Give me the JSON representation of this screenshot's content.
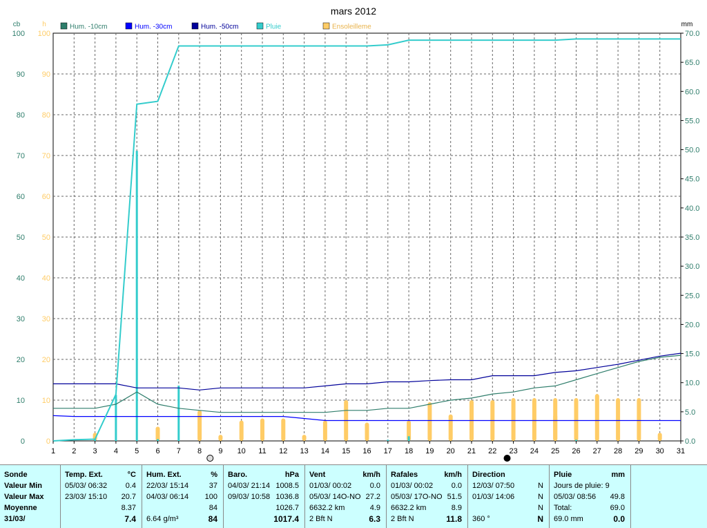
{
  "title": "mars 2012",
  "chart_data": {
    "type": "line",
    "title": "mars 2012",
    "x": [
      1,
      2,
      3,
      4,
      5,
      6,
      7,
      8,
      9,
      10,
      11,
      12,
      13,
      14,
      15,
      16,
      17,
      18,
      19,
      20,
      21,
      22,
      23,
      24,
      25,
      26,
      27,
      28,
      29,
      30,
      31
    ],
    "xlim": [
      1,
      31
    ],
    "left_axis": {
      "units": [
        "cb",
        "h"
      ],
      "ylim": [
        0,
        100
      ],
      "ticks": [
        0,
        10,
        20,
        30,
        40,
        50,
        60,
        70,
        80,
        90,
        100
      ]
    },
    "right_axis": {
      "units": "mm",
      "ylim": [
        0,
        70
      ],
      "ticks": [
        "0.0",
        "5.0",
        "10.0",
        "15.0",
        "20.0",
        "25.0",
        "30.0",
        "35.0",
        "40.0",
        "45.0",
        "50.0",
        "55.0",
        "60.0",
        "65.0",
        "70.0"
      ]
    },
    "grid": true,
    "legend_position": "top",
    "legend": [
      {
        "label": "Hum. -10cm",
        "color": "#2e7d6b"
      },
      {
        "label": "Hum. -30cm",
        "color": "#0000ff"
      },
      {
        "label": "Hum. -50cm",
        "color": "#000099"
      },
      {
        "label": "Pluie",
        "color": "#33cccc"
      },
      {
        "label": "Ensoleilleme",
        "color": "#ffcc66"
      }
    ],
    "series": [
      {
        "name": "Hum. -10cm",
        "color": "#2e7d6b",
        "axis": "left",
        "points": [
          [
            1,
            8
          ],
          [
            2,
            8
          ],
          [
            3,
            8
          ],
          [
            4,
            9
          ],
          [
            5,
            12
          ],
          [
            6,
            9
          ],
          [
            7,
            8
          ],
          [
            8,
            7.5
          ],
          [
            9,
            7
          ],
          [
            10,
            7
          ],
          [
            11,
            7
          ],
          [
            12,
            7
          ],
          [
            13,
            7
          ],
          [
            14,
            7
          ],
          [
            15,
            7.5
          ],
          [
            16,
            7.5
          ],
          [
            17,
            8
          ],
          [
            18,
            8
          ],
          [
            19,
            9
          ],
          [
            20,
            10
          ],
          [
            21,
            10.5
          ],
          [
            22,
            11.5
          ],
          [
            23,
            12
          ],
          [
            24,
            13
          ],
          [
            25,
            13.5
          ],
          [
            26,
            15
          ],
          [
            27,
            16.5
          ],
          [
            28,
            18
          ],
          [
            29,
            19.5
          ],
          [
            30,
            20.5
          ],
          [
            31,
            21
          ]
        ]
      },
      {
        "name": "Hum. -30cm",
        "color": "#0000ff",
        "axis": "left",
        "points": [
          [
            1,
            6.2
          ],
          [
            2,
            6
          ],
          [
            3,
            6
          ],
          [
            4,
            6
          ],
          [
            5,
            6
          ],
          [
            6,
            6
          ],
          [
            7,
            6
          ],
          [
            8,
            6
          ],
          [
            9,
            6
          ],
          [
            10,
            6
          ],
          [
            11,
            6
          ],
          [
            12,
            6
          ],
          [
            13,
            5.5
          ],
          [
            14,
            5
          ],
          [
            15,
            5
          ],
          [
            16,
            5
          ],
          [
            17,
            5
          ],
          [
            18,
            5
          ],
          [
            19,
            5
          ],
          [
            20,
            5
          ],
          [
            21,
            5
          ],
          [
            22,
            5
          ],
          [
            23,
            5
          ],
          [
            24,
            5
          ],
          [
            25,
            5
          ],
          [
            26,
            5
          ],
          [
            27,
            5
          ],
          [
            28,
            5
          ],
          [
            29,
            5
          ],
          [
            30,
            5
          ],
          [
            31,
            5
          ]
        ]
      },
      {
        "name": "Hum. -50cm",
        "color": "#000099",
        "axis": "left",
        "points": [
          [
            1,
            14
          ],
          [
            2,
            14
          ],
          [
            3,
            14
          ],
          [
            4,
            14
          ],
          [
            5,
            13
          ],
          [
            6,
            13
          ],
          [
            7,
            13
          ],
          [
            8,
            12.5
          ],
          [
            9,
            13
          ],
          [
            10,
            13
          ],
          [
            11,
            13
          ],
          [
            12,
            13
          ],
          [
            13,
            13
          ],
          [
            14,
            13.5
          ],
          [
            15,
            14
          ],
          [
            16,
            14
          ],
          [
            17,
            14.5
          ],
          [
            18,
            14.5
          ],
          [
            19,
            14.8
          ],
          [
            20,
            15
          ],
          [
            21,
            15
          ],
          [
            22,
            16
          ],
          [
            23,
            16
          ],
          [
            24,
            16
          ],
          [
            25,
            16.8
          ],
          [
            26,
            17.2
          ],
          [
            27,
            18
          ],
          [
            28,
            18.8
          ],
          [
            29,
            19.8
          ],
          [
            30,
            20.8
          ],
          [
            31,
            21.5
          ]
        ]
      },
      {
        "name": "Pluie (cumul)",
        "color": "#33cccc",
        "axis": "right",
        "points": [
          [
            1,
            0
          ],
          [
            2,
            0.2
          ],
          [
            3,
            0.3
          ],
          [
            4,
            8
          ],
          [
            5,
            57.8
          ],
          [
            6,
            58.3
          ],
          [
            7,
            67.8
          ],
          [
            8,
            67.8
          ],
          [
            9,
            67.8
          ],
          [
            10,
            67.8
          ],
          [
            11,
            67.8
          ],
          [
            12,
            67.8
          ],
          [
            13,
            67.8
          ],
          [
            14,
            67.8
          ],
          [
            15,
            67.8
          ],
          [
            16,
            67.8
          ],
          [
            17,
            68
          ],
          [
            18,
            68.8
          ],
          [
            19,
            68.8
          ],
          [
            20,
            68.8
          ],
          [
            21,
            68.8
          ],
          [
            22,
            68.8
          ],
          [
            23,
            68.8
          ],
          [
            24,
            68.8
          ],
          [
            25,
            68.8
          ],
          [
            26,
            69
          ],
          [
            27,
            69
          ],
          [
            28,
            69
          ],
          [
            29,
            69
          ],
          [
            30,
            69
          ],
          [
            31,
            69
          ]
        ]
      }
    ],
    "rain_daily_mm": [
      [
        3,
        0.3
      ],
      [
        4,
        7.9
      ],
      [
        5,
        49.8
      ],
      [
        6,
        0.3
      ],
      [
        7,
        9.5
      ],
      [
        17,
        0.2
      ],
      [
        18,
        0.8
      ],
      [
        26,
        0.2
      ]
    ],
    "sunshine_hours": [
      [
        3,
        2
      ],
      [
        6,
        3.5
      ],
      [
        8,
        7.5
      ],
      [
        9,
        1.5
      ],
      [
        10,
        5
      ],
      [
        11,
        5.5
      ],
      [
        12,
        5.5
      ],
      [
        13,
        1.5
      ],
      [
        14,
        5
      ],
      [
        15,
        10
      ],
      [
        16,
        4.5
      ],
      [
        18,
        5
      ],
      [
        19,
        9.5
      ],
      [
        20,
        6.5
      ],
      [
        21,
        10
      ],
      [
        22,
        10
      ],
      [
        23,
        10.5
      ],
      [
        24,
        10.5
      ],
      [
        25,
        10.5
      ],
      [
        25,
        6.5
      ],
      [
        26,
        10.5
      ],
      [
        27,
        11.5
      ],
      [
        28,
        10.5
      ],
      [
        29,
        10.5
      ],
      [
        30,
        2
      ]
    ],
    "moon_markers": [
      {
        "day": 8.5,
        "phase": "full-moon"
      },
      {
        "day": 22.7,
        "phase": "new-moon"
      }
    ]
  },
  "stats": {
    "labels_col": {
      "title": "Sonde",
      "min": "Valeur Min",
      "max": "Valeur Max",
      "avg": "Moyenne",
      "date": "31/03/"
    },
    "temp": {
      "title": "Temp. Ext.",
      "unit": "°C",
      "min_dt": "05/03/ 06:32",
      "min_v": "0.4",
      "max_dt": "23/03/ 15:10",
      "max_v": "20.7",
      "avg": "8.37",
      "last": "7.4"
    },
    "hum": {
      "title": "Hum. Ext.",
      "unit": "%",
      "min_dt": "22/03/ 15:14",
      "min_v": "37",
      "max_dt": "04/03/ 06:14",
      "max_v": "100",
      "avg": "84",
      "extra": "6.64 g/m³",
      "last": "84"
    },
    "baro": {
      "title": "Baro.",
      "unit": "hPa",
      "min_dt": "04/03/ 21:14",
      "min_v": "1008.5",
      "max_dt": "09/03/ 10:58",
      "max_v": "1036.8",
      "avg": "1026.7",
      "last": "1017.4"
    },
    "vent": {
      "title": "Vent",
      "unit": "km/h",
      "min_dt": "01/03/ 00:02",
      "min_v": "0.0",
      "max_dt": "05/03/ 14O-NO",
      "max_v": "27.2",
      "dist": "6632.2 km",
      "avg": "4.9",
      "extra": "2 Bft N",
      "last": "6.3"
    },
    "rafales": {
      "title": "Rafales",
      "unit": "km/h",
      "min_dt": "01/03/ 00:02",
      "min_v": "0.0",
      "max_dt": "05/03/ 17O-NO",
      "max_v": "51.5",
      "dist": "6632.2 km",
      "avg": "8.9",
      "extra": "2 Bft N",
      "last": "11.8"
    },
    "direction": {
      "title": "Direction",
      "min_dt": "12/03/ 07:50",
      "min_v": "N",
      "max_dt": "01/03/ 14:06",
      "max_v": "N",
      "avg": "N",
      "extra": "360 °",
      "last": "N"
    },
    "pluie": {
      "title": "Pluie",
      "unit": "mm",
      "days": "Jours de pluie: 9",
      "max_dt": "05/03/ 08:56",
      "max_v": "49.8",
      "total_label": "Total:",
      "total_v": "69.0",
      "extra": "69.0 mm",
      "last": "0.0"
    }
  }
}
